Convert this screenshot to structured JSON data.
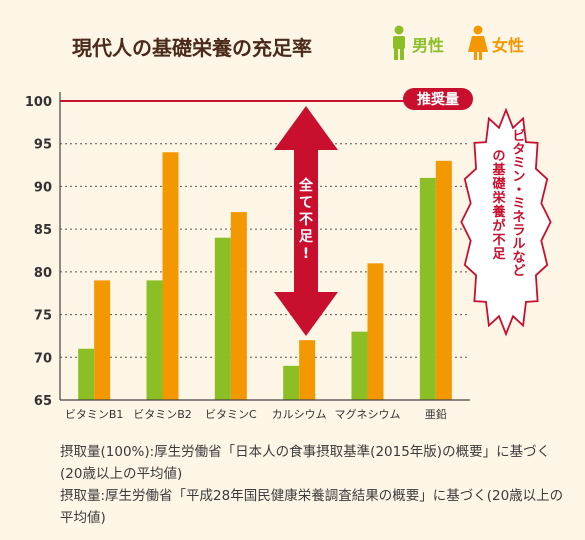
{
  "chart_data": {
    "type": "bar",
    "title": "現代人の基礎栄養の充足率",
    "legend": {
      "placement": "top-right",
      "items": [
        {
          "label": "男性",
          "color": "#8cbf26"
        },
        {
          "label": "女性",
          "color": "#f39800"
        }
      ]
    },
    "categories": [
      "ビタミンB1",
      "ビタミンB2",
      "ビタミンC",
      "カルシウム",
      "マグネシウム",
      "亜鉛"
    ],
    "series": [
      {
        "name": "男性",
        "color": "#8cbf26",
        "values": [
          71,
          79,
          84,
          69,
          73,
          91
        ]
      },
      {
        "name": "女性",
        "color": "#f39800",
        "values": [
          79,
          94,
          87,
          72,
          81,
          93
        ]
      }
    ],
    "ylim": [
      65,
      100
    ],
    "yticks": [
      65,
      70,
      75,
      80,
      85,
      90,
      95,
      100
    ],
    "grid": true,
    "reference_line": {
      "value": 100,
      "label": "推奨量",
      "color": "#c8102e"
    },
    "annotations": {
      "arrow_text": "全て不足!",
      "burst_text": [
        "ビタミン・ミネラルなど",
        "の基礎栄養が不足"
      ]
    }
  },
  "notes": [
    "摂取量(100%):厚生労働省「日本人の食事摂取基準(2015年版)の概要」に基づく(20歳以上の平均値)",
    "摂取量:厚生労働省「平成28年国民健康栄養調査結果の概要」に基づく(20歳以上の平均値)"
  ]
}
